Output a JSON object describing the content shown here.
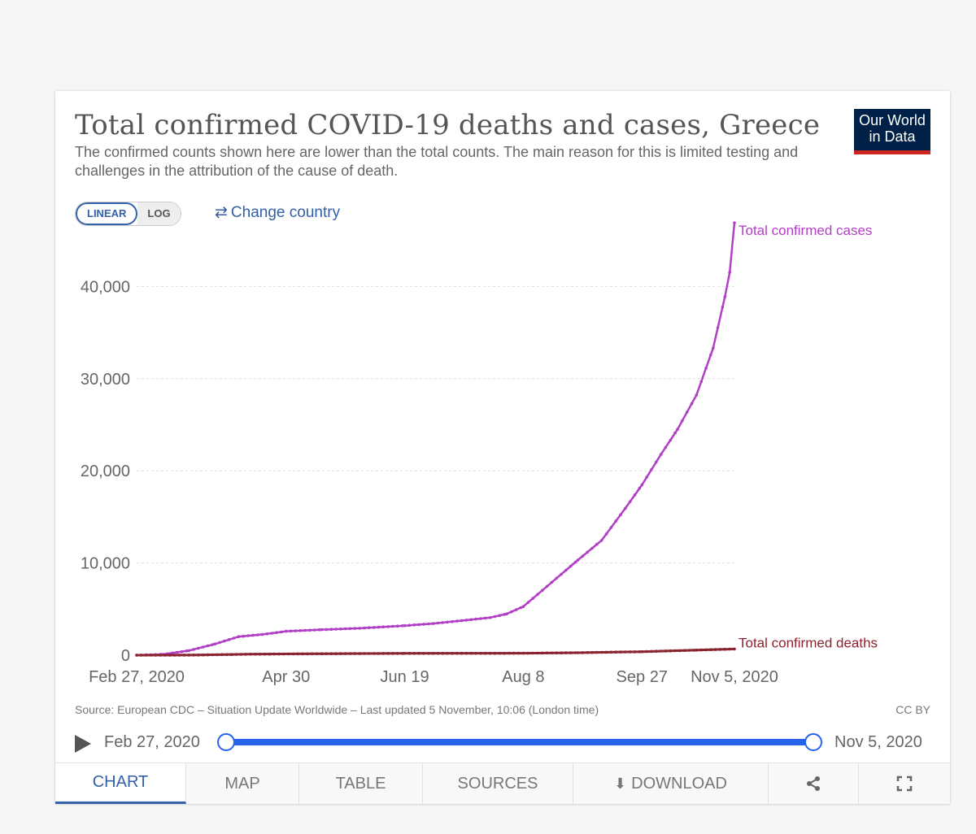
{
  "header": {
    "title": "Total confirmed COVID-19 deaths and cases, Greece",
    "subtitle": "The confirmed counts shown here are lower than the total counts. The main reason for this is limited testing and challenges in the attribution of the cause of death.",
    "logo_line1": "Our World",
    "logo_line2": "in Data"
  },
  "controls": {
    "linear": "LINEAR",
    "log": "LOG",
    "change_country": "Change country",
    "change_country_icon": "swap-arrows-icon"
  },
  "chart_data": {
    "type": "line",
    "title": "Total confirmed COVID-19 deaths and cases, Greece",
    "xlabel": "",
    "ylabel": "",
    "x_start": "2020-02-27",
    "x_end": "2020-11-05",
    "xlim": [
      "2020-02-27",
      "2020-11-05"
    ],
    "ylim": [
      0,
      47000
    ],
    "yticks": [
      0,
      10000,
      20000,
      30000,
      40000
    ],
    "ytick_labels": [
      "0",
      "10,000",
      "20,000",
      "30,000",
      "40,000"
    ],
    "xtick_labels": [
      "Feb 27, 2020",
      "Apr 30",
      "Jun 19",
      "Aug 8",
      "Sep 27",
      "Nov 5, 2020"
    ],
    "xtick_dates": [
      "2020-02-27",
      "2020-04-30",
      "2020-06-19",
      "2020-08-08",
      "2020-09-27",
      "2020-11-05"
    ],
    "grid": "horizontal dashed",
    "legend": "labels at line ends",
    "series": [
      {
        "name": "Total confirmed cases",
        "color": "#b13fc6",
        "points": [
          [
            "2020-02-27",
            3
          ],
          [
            "2020-03-09",
            84
          ],
          [
            "2020-03-20",
            495
          ],
          [
            "2020-03-31",
            1212
          ],
          [
            "2020-04-10",
            2011
          ],
          [
            "2020-04-20",
            2245
          ],
          [
            "2020-04-30",
            2591
          ],
          [
            "2020-05-15",
            2770
          ],
          [
            "2020-05-31",
            2917
          ],
          [
            "2020-06-19",
            3203
          ],
          [
            "2020-07-01",
            3432
          ],
          [
            "2020-07-15",
            3803
          ],
          [
            "2020-07-25",
            4077
          ],
          [
            "2020-08-01",
            4477
          ],
          [
            "2020-08-08",
            5270
          ],
          [
            "2020-08-18",
            7472
          ],
          [
            "2020-08-31",
            10317
          ],
          [
            "2020-09-10",
            12452
          ],
          [
            "2020-09-20",
            15928
          ],
          [
            "2020-09-27",
            18475
          ],
          [
            "2020-10-05",
            21772
          ],
          [
            "2020-10-12",
            24495
          ],
          [
            "2020-10-20",
            28216
          ],
          [
            "2020-10-27",
            33308
          ],
          [
            "2020-11-01",
            38878
          ],
          [
            "2020-11-03",
            41527
          ],
          [
            "2020-11-05",
            46892
          ]
        ]
      },
      {
        "name": "Total confirmed deaths",
        "color": "#8b2431",
        "points": [
          [
            "2020-02-27",
            0
          ],
          [
            "2020-03-20",
            6
          ],
          [
            "2020-04-15",
            102
          ],
          [
            "2020-05-15",
            156
          ],
          [
            "2020-06-19",
            190
          ],
          [
            "2020-08-08",
            210
          ],
          [
            "2020-08-31",
            266
          ],
          [
            "2020-09-27",
            378
          ],
          [
            "2020-10-20",
            549
          ],
          [
            "2020-11-05",
            673
          ]
        ]
      }
    ]
  },
  "footer": {
    "source": "Source: European CDC – Situation Update Worldwide – Last updated 5 November, 10:06 (London time)",
    "license": "CC BY",
    "start_date": "Feb 27, 2020",
    "end_date": "Nov 5, 2020"
  },
  "tabs": {
    "chart": "CHART",
    "map": "MAP",
    "table": "TABLE",
    "sources": "SOURCES",
    "download": "DOWNLOAD",
    "share_icon": "share-icon",
    "fullscreen_icon": "fullscreen-icon"
  }
}
